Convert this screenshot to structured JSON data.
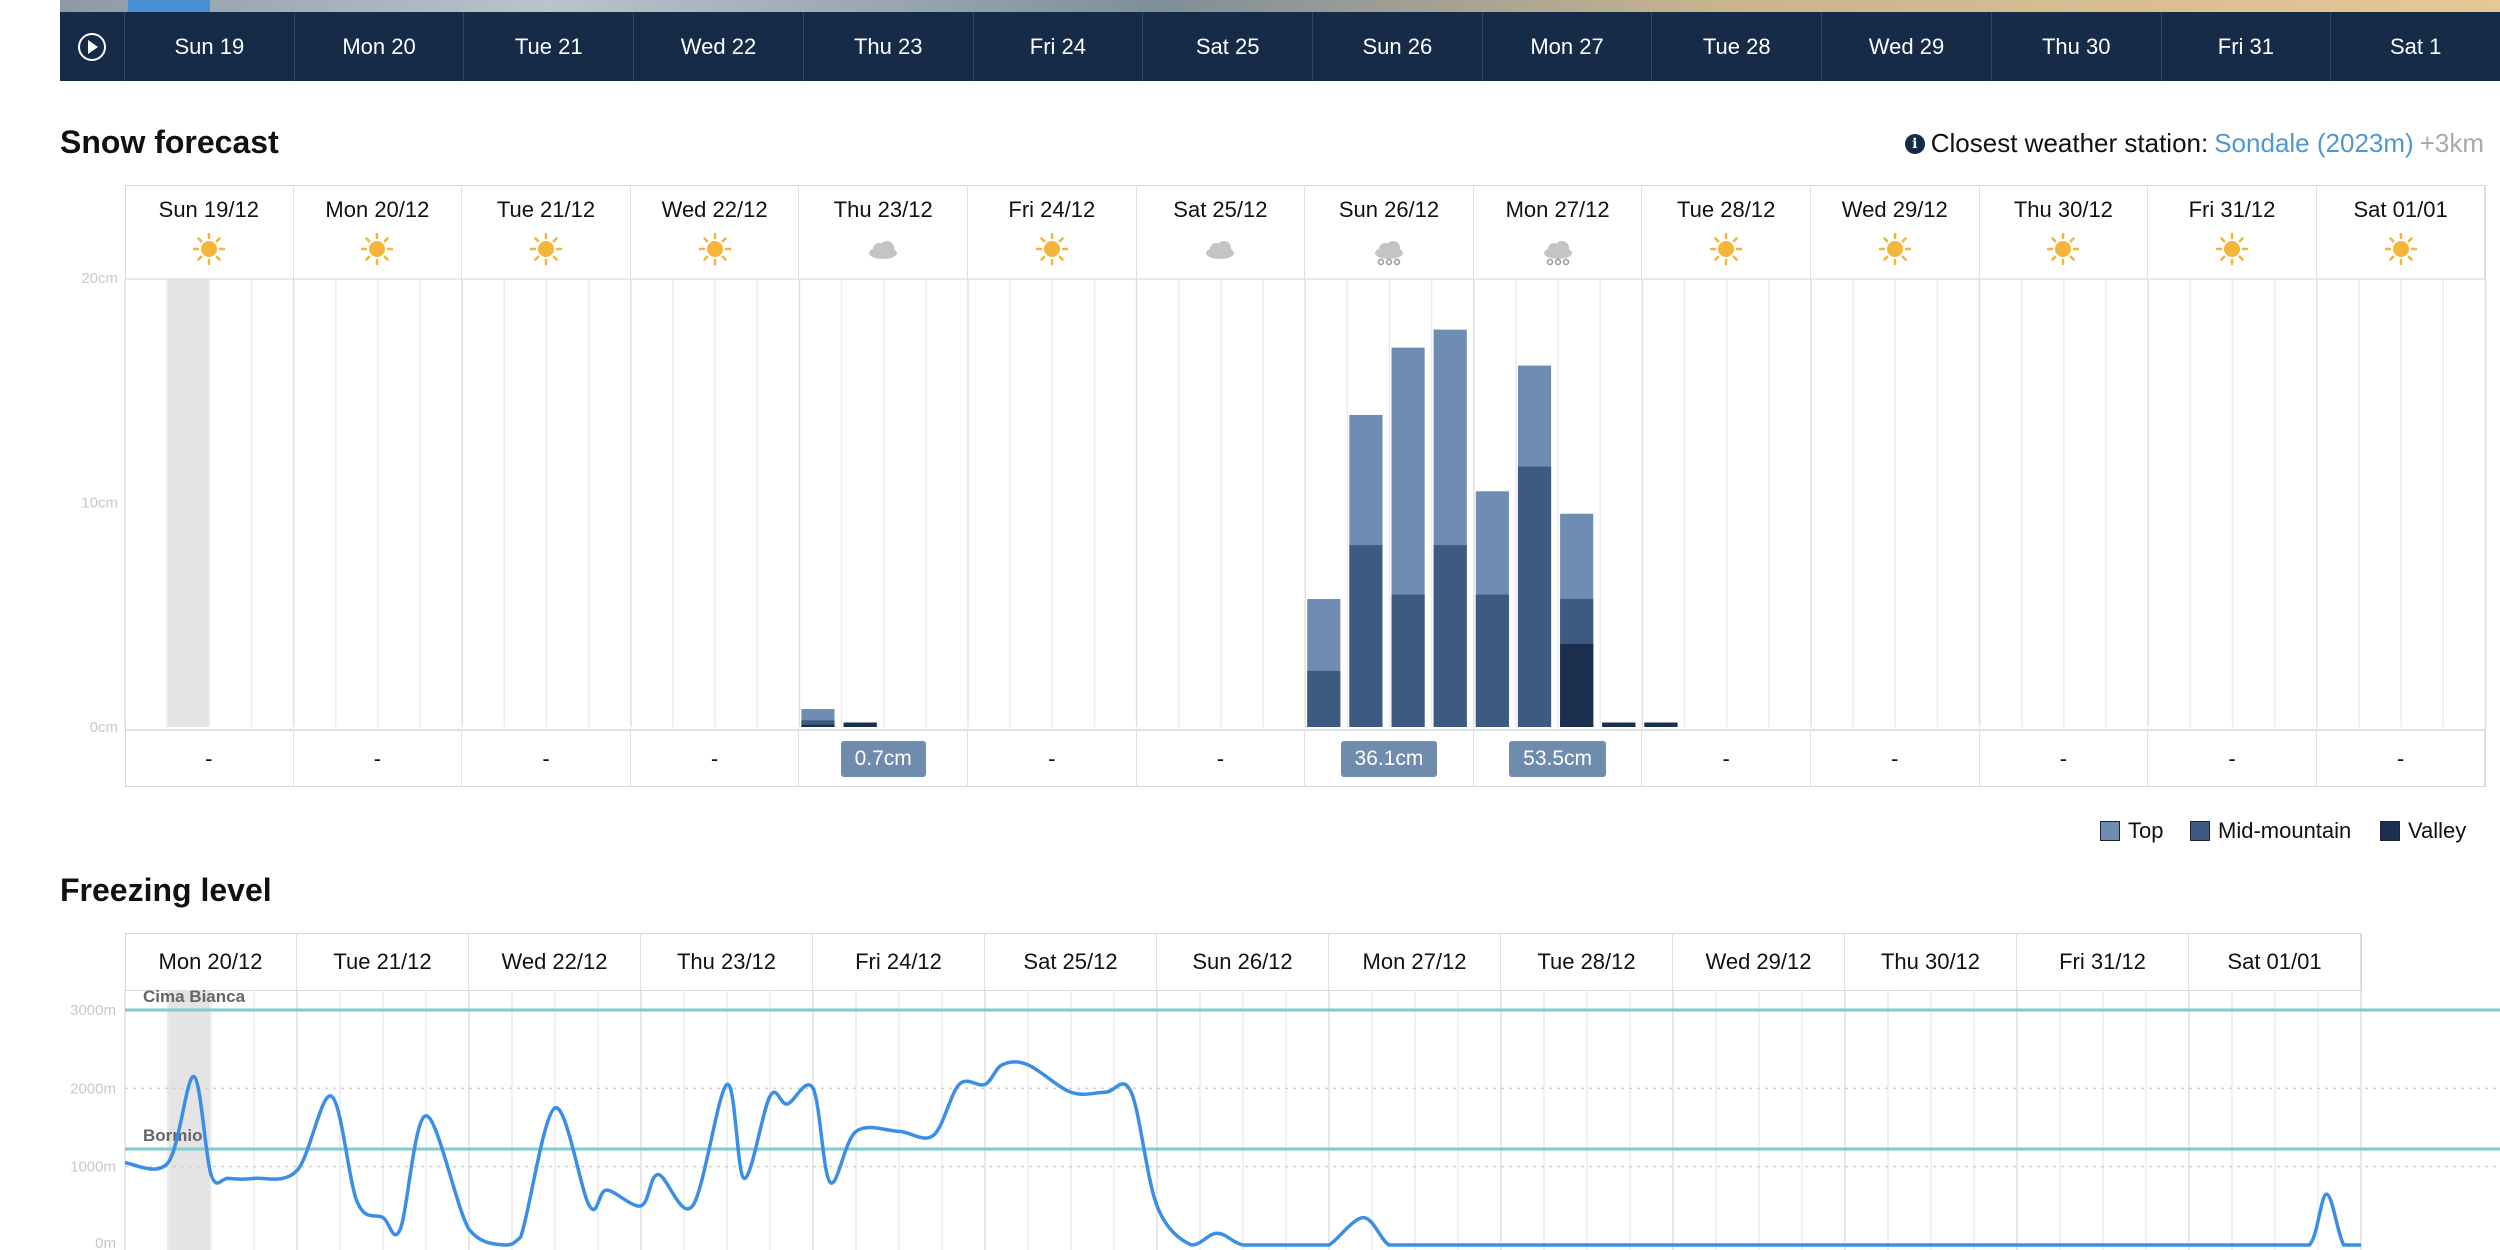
{
  "timeline": {
    "play_icon": "play-icon",
    "days": [
      "Sun 19",
      "Mon 20",
      "Tue 21",
      "Wed 22",
      "Thu 23",
      "Fri 24",
      "Sat 25",
      "Sun 26",
      "Mon 27",
      "Tue 28",
      "Wed 29",
      "Thu 30",
      "Fri 31",
      "Sat 1"
    ]
  },
  "snow": {
    "title": "Snow forecast",
    "station_prefix": "Closest weather station:",
    "station_name": "Sondale (2023m)",
    "station_distance": "+3km",
    "info_icon": "info-icon"
  },
  "freezing": {
    "title": "Freezing level"
  },
  "colors": {
    "top": "#6f8cb2",
    "mid": "#3d5a80",
    "valley": "#1b2f4f",
    "line": "#3a8ee6",
    "ref": "#7fcbd0",
    "badge": "#6f8cae",
    "sun": "#f5b43a",
    "cloud": "#c4c4c4"
  },
  "chart_data": [
    {
      "type": "bar",
      "title": "Snow forecast",
      "unit": "cm",
      "ylim": [
        0,
        20
      ],
      "y_ticks": [
        "0cm",
        "10cm",
        "20cm"
      ],
      "days": [
        {
          "label": "Sun 19/12",
          "icon": "sun-icon",
          "total": "-"
        },
        {
          "label": "Mon 20/12",
          "icon": "sun-icon",
          "total": "-"
        },
        {
          "label": "Tue 21/12",
          "icon": "sun-icon",
          "total": "-"
        },
        {
          "label": "Wed 22/12",
          "icon": "sun-icon",
          "total": "-"
        },
        {
          "label": "Thu 23/12",
          "icon": "cloud-icon",
          "total": "0.7cm"
        },
        {
          "label": "Fri 24/12",
          "icon": "sun-icon",
          "total": "-"
        },
        {
          "label": "Sat 25/12",
          "icon": "cloud-icon",
          "total": "-"
        },
        {
          "label": "Sun 26/12",
          "icon": "snow-cloud-icon",
          "total": "36.1cm"
        },
        {
          "label": "Mon 27/12",
          "icon": "snow-cloud-icon",
          "total": "53.5cm"
        },
        {
          "label": "Tue 28/12",
          "icon": "sun-icon",
          "total": "-"
        },
        {
          "label": "Wed 29/12",
          "icon": "sun-icon",
          "total": "-"
        },
        {
          "label": "Thu 30/12",
          "icon": "sun-icon",
          "total": "-"
        },
        {
          "label": "Fri 31/12",
          "icon": "sun-icon",
          "total": "-"
        },
        {
          "label": "Sat 01/01",
          "icon": "sun-icon",
          "total": "-"
        }
      ],
      "series": [
        {
          "name": "Top",
          "values": [
            0,
            0,
            0,
            0,
            0,
            0,
            0,
            0,
            0,
            0,
            0,
            0,
            0,
            0,
            0,
            0,
            0.8,
            0.2,
            0,
            0,
            0,
            0,
            0,
            0,
            0,
            0,
            0,
            0,
            5.7,
            13.9,
            16.9,
            17.7,
            10.5,
            16.1,
            9.5,
            0.2,
            0.2,
            0,
            0,
            0,
            0,
            0,
            0,
            0,
            0,
            0,
            0,
            0,
            0,
            0,
            0,
            0,
            0,
            0,
            0,
            0
          ]
        },
        {
          "name": "Mid-mountain",
          "values": [
            0,
            0,
            0,
            0,
            0,
            0,
            0,
            0,
            0,
            0,
            0,
            0,
            0,
            0,
            0,
            0,
            0.3,
            0.2,
            0,
            0,
            0,
            0,
            0,
            0,
            0,
            0,
            0,
            0,
            2.5,
            8.1,
            5.9,
            8.1,
            5.9,
            11.6,
            5.7,
            0.2,
            0.2,
            0,
            0,
            0,
            0,
            0,
            0,
            0,
            0,
            0,
            0,
            0,
            0,
            0,
            0,
            0,
            0,
            0,
            0,
            0
          ]
        },
        {
          "name": "Valley",
          "values": [
            0,
            0,
            0,
            0,
            0,
            0,
            0,
            0,
            0,
            0,
            0,
            0,
            0,
            0,
            0,
            0,
            0.1,
            0.2,
            0,
            0,
            0,
            0,
            0,
            0,
            0,
            0,
            0,
            0,
            0,
            0,
            0,
            0,
            0,
            0,
            3.7,
            0.2,
            0.2,
            0,
            0,
            0,
            0,
            0,
            0,
            0,
            0,
            0,
            0,
            0,
            0,
            0,
            0,
            0,
            0,
            0,
            0,
            0
          ]
        }
      ],
      "legend": [
        "Top",
        "Mid-mountain",
        "Valley"
      ]
    },
    {
      "type": "line",
      "title": "Freezing level",
      "unit": "m",
      "ylim": [
        0,
        3000
      ],
      "y_ticks": [
        "0m",
        "1000m",
        "2000m",
        "3000m"
      ],
      "days": [
        "Mon 20/12",
        "Tue 21/12",
        "Wed 22/12",
        "Thu 23/12",
        "Fri 24/12",
        "Sat 25/12",
        "Sun 26/12",
        "Mon 27/12",
        "Tue 28/12",
        "Wed 29/12",
        "Thu 30/12",
        "Fri 31/12",
        "Sat 01/01"
      ],
      "x": [
        0,
        0.25,
        0.4,
        0.5,
        0.6,
        0.75,
        1.0,
        1.2,
        1.35,
        1.5,
        1.6,
        1.75,
        2.0,
        2.2,
        2.3,
        2.5,
        2.7,
        2.8,
        3.0,
        3.1,
        3.3,
        3.5,
        3.6,
        3.75,
        3.85,
        4.0,
        4.1,
        4.25,
        4.5,
        4.7,
        4.85,
        5.0,
        5.1,
        5.25,
        5.5,
        5.7,
        5.85,
        6.0,
        6.2,
        6.35,
        6.5,
        6.7,
        6.8,
        6.9,
        7.0,
        7.2,
        7.35,
        7.5,
        7.7,
        7.85,
        8.0,
        8.2,
        8.3,
        8.5,
        8.7,
        8.85,
        9.0,
        9.2,
        9.35,
        9.5,
        9.6,
        9.75,
        10.0,
        10.2,
        10.35,
        10.5,
        10.7,
        10.85,
        11.0,
        11.2,
        11.35,
        11.5,
        11.7,
        11.85,
        12.0,
        12.2,
        12.35,
        12.5,
        12.7,
        12.8,
        12.9,
        13.0
      ],
      "y": [
        1050,
        1050,
        2150,
        900,
        850,
        850,
        950,
        1900,
        550,
        350,
        200,
        1650,
        200,
        0,
        100,
        1750,
        500,
        700,
        500,
        900,
        500,
        2050,
        850,
        1900,
        1800,
        2000,
        800,
        1450,
        1450,
        1400,
        2050,
        2050,
        2300,
        2300,
        1950,
        1950,
        1950,
        500,
        0,
        150,
        0,
        0,
        0,
        0,
        0,
        350,
        0,
        0,
        0,
        0,
        0,
        0,
        0,
        0,
        0,
        0,
        0,
        0,
        0,
        0,
        0,
        0,
        0,
        0,
        0,
        0,
        0,
        0,
        0,
        0,
        0,
        0,
        0,
        0,
        0,
        0,
        0,
        0,
        0,
        650,
        0,
        0
      ],
      "reference_lines": [
        {
          "name": "Cima Bianca",
          "value": 3000
        },
        {
          "name": "Bormio",
          "value": 1225
        }
      ]
    }
  ]
}
